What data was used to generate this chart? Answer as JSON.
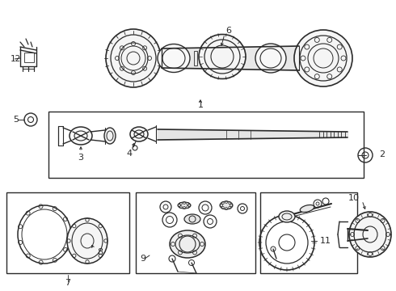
{
  "bg_color": "#ffffff",
  "lc": "#2a2a2a",
  "figsize": [
    4.9,
    3.6
  ],
  "dpi": 100,
  "labels": {
    "1": [
      248,
      132,
      8
    ],
    "2": [
      467,
      198,
      8
    ],
    "3": [
      102,
      193,
      8
    ],
    "4": [
      167,
      196,
      8
    ],
    "5": [
      16,
      148,
      8
    ],
    "6": [
      283,
      42,
      8
    ],
    "7": [
      88,
      350,
      8
    ],
    "8": [
      118,
      300,
      8
    ],
    "9": [
      175,
      320,
      8
    ],
    "10": [
      430,
      238,
      8
    ],
    "11": [
      393,
      298,
      8
    ],
    "12": [
      13,
      72,
      8
    ]
  }
}
